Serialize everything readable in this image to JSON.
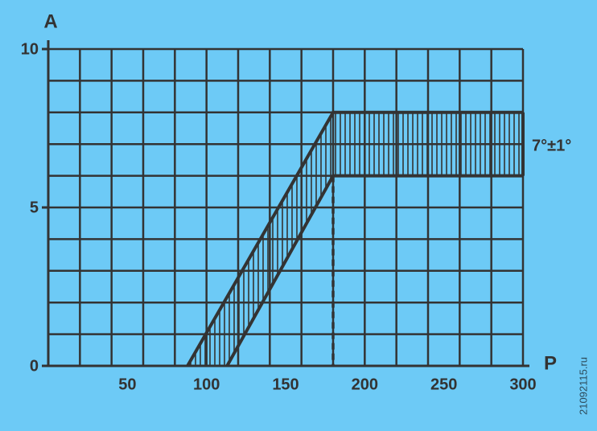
{
  "chart_data": {
    "type": "band",
    "x_label": "P",
    "y_label": "A",
    "xlim": [
      0,
      300
    ],
    "ylim": [
      0,
      10
    ],
    "xticks": [
      50,
      100,
      150,
      200,
      250,
      300
    ],
    "yticks": [
      0,
      5,
      10
    ],
    "x_grid_lines": [
      0,
      20,
      40,
      60,
      80,
      100,
      120,
      140,
      160,
      180,
      200,
      220,
      240,
      260,
      280,
      300
    ],
    "y_grid_lines": [
      0,
      1,
      2,
      3,
      4,
      5,
      6,
      7,
      8,
      9,
      10
    ],
    "grid": true,
    "color": "#333333",
    "series": [
      {
        "x": [
          88,
          180,
          300
        ],
        "y": [
          0,
          8,
          8
        ]
      },
      {
        "x": [
          113,
          180,
          300
        ],
        "y": [
          0,
          6,
          6
        ]
      }
    ],
    "annotation": "7°±1°",
    "watermark": "21092115.ru"
  }
}
